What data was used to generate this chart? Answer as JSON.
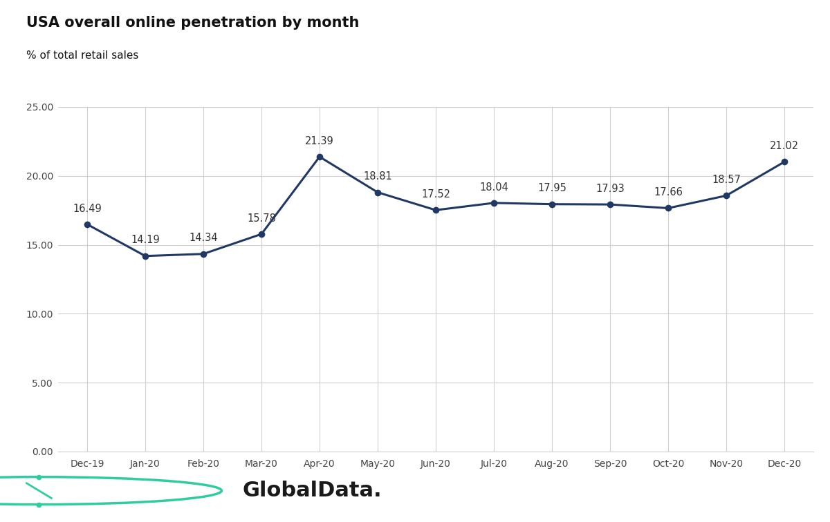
{
  "title": "USA overall online penetration by month",
  "subtitle": "% of total retail sales",
  "months": [
    "Dec-19",
    "Jan-20",
    "Feb-20",
    "Mar-20",
    "Apr-20",
    "May-20",
    "Jun-20",
    "Jul-20",
    "Aug-20",
    "Sep-20",
    "Oct-20",
    "Nov-20",
    "Dec-20"
  ],
  "values": [
    16.49,
    14.19,
    14.34,
    15.78,
    21.39,
    18.81,
    17.52,
    18.04,
    17.95,
    17.93,
    17.66,
    18.57,
    21.02
  ],
  "line_color": "#1f3864",
  "marker_color": "#1f3864",
  "title_fontsize": 15,
  "subtitle_fontsize": 11,
  "tick_fontsize": 10,
  "data_label_fontsize": 10.5,
  "ylim": [
    0,
    25
  ],
  "yticks": [
    0.0,
    5.0,
    10.0,
    15.0,
    20.0,
    25.0
  ],
  "header_bg_color": "#e8e8e8",
  "plot_bg_color": "#ffffff",
  "fig_bg_color": "#ffffff",
  "grid_color": "#d0d0d0",
  "globaldata_color": "#2ecc9e",
  "label_color": "#333333"
}
